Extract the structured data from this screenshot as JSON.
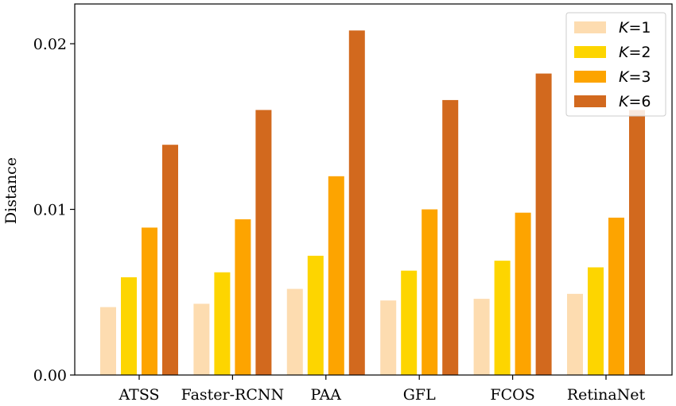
{
  "chart_data": {
    "type": "bar",
    "ylabel": "Distance",
    "xlabel": "",
    "ylim": [
      0,
      0.0224
    ],
    "yticks": [
      0.0,
      0.01,
      0.02
    ],
    "ytick_labels": [
      "0.00",
      "0.01",
      "0.02"
    ],
    "grid": false,
    "legend_position": "top-right",
    "categories": [
      "ATSS",
      "Faster-RCNN",
      "PAA",
      "GFL",
      "FCOS",
      "RetinaNet"
    ],
    "series": [
      {
        "name": "K=1",
        "name_var": "K",
        "name_rest": "=1",
        "color": "#fddcb0",
        "values": [
          0.0041,
          0.0043,
          0.0052,
          0.0045,
          0.0046,
          0.0049
        ]
      },
      {
        "name": "K=2",
        "name_var": "K",
        "name_rest": "=2",
        "color": "#fdd500",
        "values": [
          0.0059,
          0.0062,
          0.0072,
          0.0063,
          0.0069,
          0.0065
        ]
      },
      {
        "name": "K=3",
        "name_var": "K",
        "name_rest": "=3",
        "color": "#fda400",
        "values": [
          0.0089,
          0.0094,
          0.012,
          0.01,
          0.0098,
          0.0095
        ]
      },
      {
        "name": "K=6",
        "name_var": "K",
        "name_rest": "=6",
        "color": "#d2691e",
        "values": [
          0.0139,
          0.016,
          0.0208,
          0.0166,
          0.0182,
          0.016
        ]
      }
    ]
  }
}
